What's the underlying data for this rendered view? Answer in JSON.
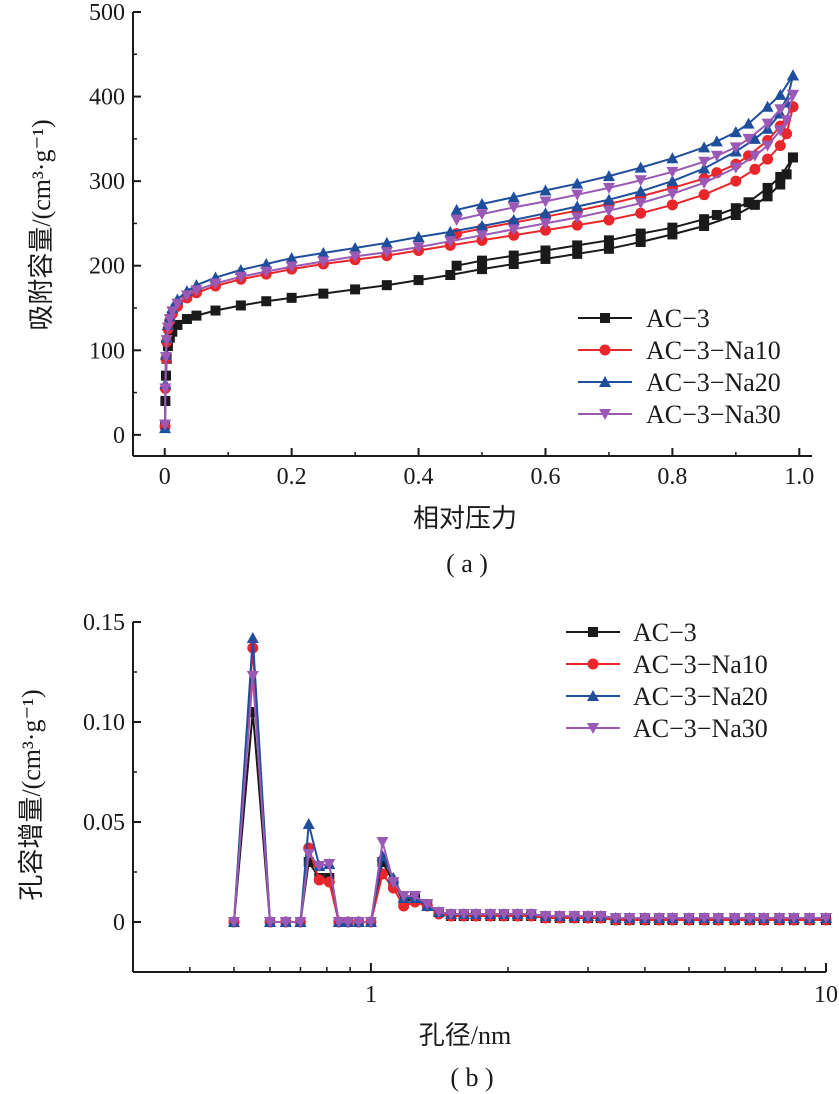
{
  "figure": {
    "caption_a": "( a )",
    "caption_b": "( b )"
  },
  "chart_data": [
    {
      "type": "line",
      "panel": "a",
      "xlabel": "相对压力",
      "ylabel": "吸附容量/(cm³·g⁻¹)",
      "xlim": [
        -0.05,
        1.02
      ],
      "ylim": [
        -25,
        500
      ],
      "xticks": [
        0,
        0.2,
        0.4,
        0.6,
        0.8,
        1.0
      ],
      "xtick_labels": [
        "0",
        "0.2",
        "0.4",
        "0.6",
        "0.8",
        "1.0"
      ],
      "yticks": [
        0,
        100,
        200,
        300,
        400,
        500
      ],
      "ytick_labels": [
        "0",
        "100",
        "200",
        "300",
        "400",
        "500"
      ],
      "legend_position": "bottom-right",
      "series": [
        {
          "name": "AC−3",
          "color": "#1a1a1a",
          "marker": "square",
          "adsorption": [
            [
              0.0005,
              12
            ],
            [
              0.001,
              40
            ],
            [
              0.002,
              70
            ],
            [
              0.003,
              90
            ],
            [
              0.005,
              105
            ],
            [
              0.008,
              115
            ],
            [
              0.012,
              122
            ],
            [
              0.02,
              130
            ],
            [
              0.035,
              137
            ],
            [
              0.05,
              141
            ],
            [
              0.08,
              147
            ],
            [
              0.12,
              153
            ],
            [
              0.16,
              158
            ],
            [
              0.2,
              162
            ],
            [
              0.25,
              167
            ],
            [
              0.3,
              172
            ],
            [
              0.35,
              177
            ],
            [
              0.4,
              183
            ],
            [
              0.45,
              189
            ],
            [
              0.5,
              196
            ],
            [
              0.55,
              202
            ],
            [
              0.6,
              208
            ],
            [
              0.65,
              214
            ],
            [
              0.7,
              220
            ],
            [
              0.75,
              228
            ],
            [
              0.8,
              237
            ],
            [
              0.85,
              247
            ],
            [
              0.9,
              260
            ],
            [
              0.93,
              272
            ],
            [
              0.95,
              282
            ],
            [
              0.97,
              296
            ],
            [
              0.98,
              308
            ],
            [
              0.99,
              328
            ]
          ],
          "desorption": [
            [
              0.99,
              328
            ],
            [
              0.97,
              305
            ],
            [
              0.95,
              292
            ],
            [
              0.92,
              275
            ],
            [
              0.9,
              268
            ],
            [
              0.87,
              260
            ],
            [
              0.85,
              255
            ],
            [
              0.8,
              245
            ],
            [
              0.75,
              238
            ],
            [
              0.7,
              230
            ],
            [
              0.65,
              224
            ],
            [
              0.6,
              218
            ],
            [
              0.55,
              212
            ],
            [
              0.5,
              206
            ],
            [
              0.46,
              200
            ]
          ]
        },
        {
          "name": "AC−3−Na10",
          "color": "#e8262b",
          "marker": "circle",
          "adsorption": [
            [
              0.0005,
              10
            ],
            [
              0.001,
              55
            ],
            [
              0.002,
              90
            ],
            [
              0.003,
              110
            ],
            [
              0.005,
              125
            ],
            [
              0.008,
              135
            ],
            [
              0.012,
              143
            ],
            [
              0.02,
              152
            ],
            [
              0.035,
              162
            ],
            [
              0.05,
              168
            ],
            [
              0.08,
              176
            ],
            [
              0.12,
              184
            ],
            [
              0.16,
              190
            ],
            [
              0.2,
              196
            ],
            [
              0.25,
              202
            ],
            [
              0.3,
              207
            ],
            [
              0.35,
              212
            ],
            [
              0.4,
              218
            ],
            [
              0.45,
              224
            ],
            [
              0.5,
              230
            ],
            [
              0.55,
              236
            ],
            [
              0.6,
              242
            ],
            [
              0.65,
              248
            ],
            [
              0.7,
              254
            ],
            [
              0.75,
              262
            ],
            [
              0.8,
              272
            ],
            [
              0.85,
              284
            ],
            [
              0.9,
              300
            ],
            [
              0.93,
              314
            ],
            [
              0.95,
              326
            ],
            [
              0.97,
              342
            ],
            [
              0.98,
              356
            ],
            [
              0.99,
              388
            ]
          ],
          "desorption": [
            [
              0.99,
              388
            ],
            [
              0.97,
              365
            ],
            [
              0.95,
              348
            ],
            [
              0.92,
              330
            ],
            [
              0.9,
              320
            ],
            [
              0.87,
              310
            ],
            [
              0.85,
              303
            ],
            [
              0.8,
              292
            ],
            [
              0.75,
              282
            ],
            [
              0.7,
              273
            ],
            [
              0.65,
              265
            ],
            [
              0.6,
              258
            ],
            [
              0.55,
              251
            ],
            [
              0.5,
              244
            ],
            [
              0.46,
              238
            ]
          ]
        },
        {
          "name": "AC−3−Na20",
          "color": "#1f4e9c",
          "marker": "triangle-up",
          "adsorption": [
            [
              0.0005,
              8
            ],
            [
              0.001,
              60
            ],
            [
              0.002,
              95
            ],
            [
              0.003,
              115
            ],
            [
              0.005,
              130
            ],
            [
              0.008,
              140
            ],
            [
              0.012,
              150
            ],
            [
              0.02,
              160
            ],
            [
              0.035,
              170
            ],
            [
              0.05,
              177
            ],
            [
              0.08,
              186
            ],
            [
              0.12,
              195
            ],
            [
              0.16,
              202
            ],
            [
              0.2,
              209
            ],
            [
              0.25,
              215
            ],
            [
              0.3,
              221
            ],
            [
              0.35,
              227
            ],
            [
              0.4,
              234
            ],
            [
              0.45,
              240
            ],
            [
              0.5,
              247
            ],
            [
              0.55,
              254
            ],
            [
              0.6,
              262
            ],
            [
              0.65,
              270
            ],
            [
              0.7,
              278
            ],
            [
              0.75,
              288
            ],
            [
              0.8,
              300
            ],
            [
              0.85,
              315
            ],
            [
              0.9,
              335
            ],
            [
              0.93,
              350
            ],
            [
              0.95,
              362
            ],
            [
              0.97,
              380
            ],
            [
              0.98,
              393
            ],
            [
              0.99,
              425
            ]
          ],
          "desorption": [
            [
              0.99,
              425
            ],
            [
              0.97,
              402
            ],
            [
              0.95,
              388
            ],
            [
              0.92,
              368
            ],
            [
              0.9,
              358
            ],
            [
              0.87,
              347
            ],
            [
              0.85,
              340
            ],
            [
              0.8,
              327
            ],
            [
              0.75,
              316
            ],
            [
              0.7,
              306
            ],
            [
              0.65,
              297
            ],
            [
              0.6,
              289
            ],
            [
              0.55,
              281
            ],
            [
              0.5,
              273
            ],
            [
              0.46,
              266
            ]
          ]
        },
        {
          "name": "AC−3−Na30",
          "color": "#9b59b6",
          "marker": "triangle-down",
          "adsorption": [
            [
              0.0005,
              12
            ],
            [
              0.001,
              55
            ],
            [
              0.002,
              92
            ],
            [
              0.003,
              112
            ],
            [
              0.005,
              127
            ],
            [
              0.008,
              137
            ],
            [
              0.012,
              146
            ],
            [
              0.02,
              155
            ],
            [
              0.035,
              165
            ],
            [
              0.05,
              171
            ],
            [
              0.08,
              179
            ],
            [
              0.12,
              187
            ],
            [
              0.16,
              193
            ],
            [
              0.2,
              199
            ],
            [
              0.25,
              205
            ],
            [
              0.3,
              211
            ],
            [
              0.35,
              216
            ],
            [
              0.4,
              222
            ],
            [
              0.45,
              229
            ],
            [
              0.5,
              236
            ],
            [
              0.55,
              243
            ],
            [
              0.6,
              250
            ],
            [
              0.65,
              257
            ],
            [
              0.7,
              265
            ],
            [
              0.75,
              274
            ],
            [
              0.8,
              285
            ],
            [
              0.85,
              298
            ],
            [
              0.9,
              316
            ],
            [
              0.93,
              330
            ],
            [
              0.95,
              342
            ],
            [
              0.97,
              360
            ],
            [
              0.98,
              372
            ],
            [
              0.99,
              402
            ]
          ],
          "desorption": [
            [
              0.99,
              402
            ],
            [
              0.97,
              385
            ],
            [
              0.95,
              368
            ],
            [
              0.92,
              350
            ],
            [
              0.9,
              340
            ],
            [
              0.87,
              330
            ],
            [
              0.85,
              323
            ],
            [
              0.8,
              311
            ],
            [
              0.75,
              301
            ],
            [
              0.7,
              292
            ],
            [
              0.65,
              284
            ],
            [
              0.6,
              276
            ],
            [
              0.55,
              269
            ],
            [
              0.5,
              261
            ],
            [
              0.46,
              254
            ]
          ]
        }
      ]
    },
    {
      "type": "line",
      "panel": "b",
      "xlabel": "孔径/nm",
      "ylabel": "孔容增量/(cm³·g⁻¹)",
      "xscale": "log",
      "xlim": [
        0.3,
        10
      ],
      "ylim": [
        -0.025,
        0.15
      ],
      "xticks": [
        1,
        10
      ],
      "xtick_labels": [
        "1",
        "10"
      ],
      "yticks": [
        0,
        0.05,
        0.1,
        0.15
      ],
      "ytick_labels": [
        "0",
        "0.05",
        "0.10",
        "0.15"
      ],
      "legend_position": "top-right",
      "x": [
        0.5,
        0.55,
        0.6,
        0.65,
        0.7,
        0.73,
        0.77,
        0.81,
        0.85,
        0.89,
        0.94,
        1.0,
        1.06,
        1.12,
        1.18,
        1.25,
        1.33,
        1.41,
        1.5,
        1.6,
        1.7,
        1.83,
        1.96,
        2.1,
        2.25,
        2.42,
        2.6,
        2.8,
        3.0,
        3.2,
        3.45,
        3.7,
        4.0,
        4.3,
        4.6,
        5.0,
        5.4,
        5.8,
        6.3,
        6.8,
        7.3,
        7.9,
        8.5,
        9.2,
        10.0
      ],
      "series": [
        {
          "name": "AC−3",
          "color": "#1a1a1a",
          "marker": "square",
          "values": [
            0,
            0.105,
            0,
            0,
            0,
            0.03,
            0.022,
            0.022,
            0,
            0,
            0,
            0,
            0.03,
            0.02,
            0.01,
            0.012,
            0.008,
            0.005,
            0.003,
            0.003,
            0.003,
            0.003,
            0.003,
            0.003,
            0.003,
            0.002,
            0.002,
            0.002,
            0.002,
            0.002,
            0.001,
            0.001,
            0.001,
            0.001,
            0.001,
            0.001,
            0.001,
            0.001,
            0.001,
            0.001,
            0.001,
            0.001,
            0.001,
            0.001,
            0.001
          ]
        },
        {
          "name": "AC−3−Na10",
          "color": "#e8262b",
          "marker": "circle",
          "values": [
            0,
            0.137,
            0,
            0,
            0,
            0.037,
            0.021,
            0.02,
            0,
            0,
            0,
            0,
            0.024,
            0.017,
            0.008,
            0.01,
            0.008,
            0.004,
            0.003,
            0.003,
            0.003,
            0.003,
            0.003,
            0.003,
            0.003,
            0.002,
            0.002,
            0.002,
            0.002,
            0.002,
            0.001,
            0.001,
            0.001,
            0.001,
            0.001,
            0.001,
            0.001,
            0.001,
            0.001,
            0.001,
            0.001,
            0.001,
            0.001,
            0.001,
            0.001
          ]
        },
        {
          "name": "AC−3−Na20",
          "color": "#1f4e9c",
          "marker": "triangle-up",
          "values": [
            0,
            0.142,
            0,
            0,
            0,
            0.049,
            0.028,
            0.029,
            0,
            0,
            0,
            0,
            0.033,
            0.022,
            0.012,
            0.012,
            0.008,
            0.005,
            0.004,
            0.004,
            0.004,
            0.004,
            0.004,
            0.004,
            0.004,
            0.003,
            0.003,
            0.003,
            0.003,
            0.003,
            0.002,
            0.002,
            0.002,
            0.002,
            0.002,
            0.002,
            0.002,
            0.002,
            0.002,
            0.002,
            0.002,
            0.002,
            0.002,
            0.002,
            0.002
          ]
        },
        {
          "name": "AC−3−Na30",
          "color": "#9b59b6",
          "marker": "triangle-down",
          "values": [
            0,
            0.123,
            0,
            0,
            0,
            0.034,
            0.028,
            0.029,
            0,
            0,
            0,
            0,
            0.04,
            0.02,
            0.013,
            0.013,
            0.009,
            0.005,
            0.004,
            0.004,
            0.004,
            0.004,
            0.004,
            0.004,
            0.004,
            0.003,
            0.003,
            0.003,
            0.003,
            0.003,
            0.002,
            0.002,
            0.002,
            0.002,
            0.002,
            0.002,
            0.002,
            0.002,
            0.002,
            0.002,
            0.002,
            0.002,
            0.002,
            0.002,
            0.002
          ]
        }
      ]
    }
  ]
}
